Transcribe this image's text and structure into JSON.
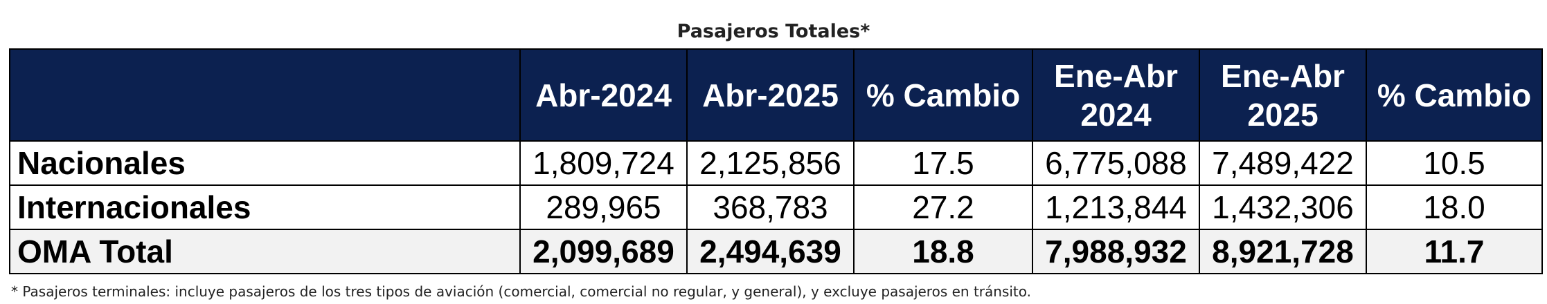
{
  "title": "Pasajeros Totales*",
  "table": {
    "headers": [
      "",
      "Abr-2024",
      "Abr-2025",
      "% Cambio",
      "Ene-Abr 2024",
      "Ene-Abr 2025",
      "% Cambio"
    ],
    "rows": [
      {
        "label": "Nacionales",
        "values": [
          "1,809,724",
          "2,125,856",
          "17.5",
          "6,775,088",
          "7,489,422",
          "10.5"
        ]
      },
      {
        "label": "Internacionales",
        "values": [
          "289,965",
          "368,783",
          "27.2",
          "1,213,844",
          "1,432,306",
          "18.0"
        ]
      },
      {
        "label": "OMA Total",
        "values": [
          "2,099,689",
          "2,494,639",
          "18.8",
          "7,988,932",
          "8,921,728",
          "11.7"
        ]
      }
    ]
  },
  "footnote": "* Pasajeros terminales: incluye pasajeros de los tres tipos de aviación (comercial, comercial no regular, y general), y excluye pasajeros en tránsito.",
  "colors": {
    "header_bg": "#0c2150",
    "header_text": "#ffffff",
    "total_row_bg": "#f2f2f2"
  }
}
